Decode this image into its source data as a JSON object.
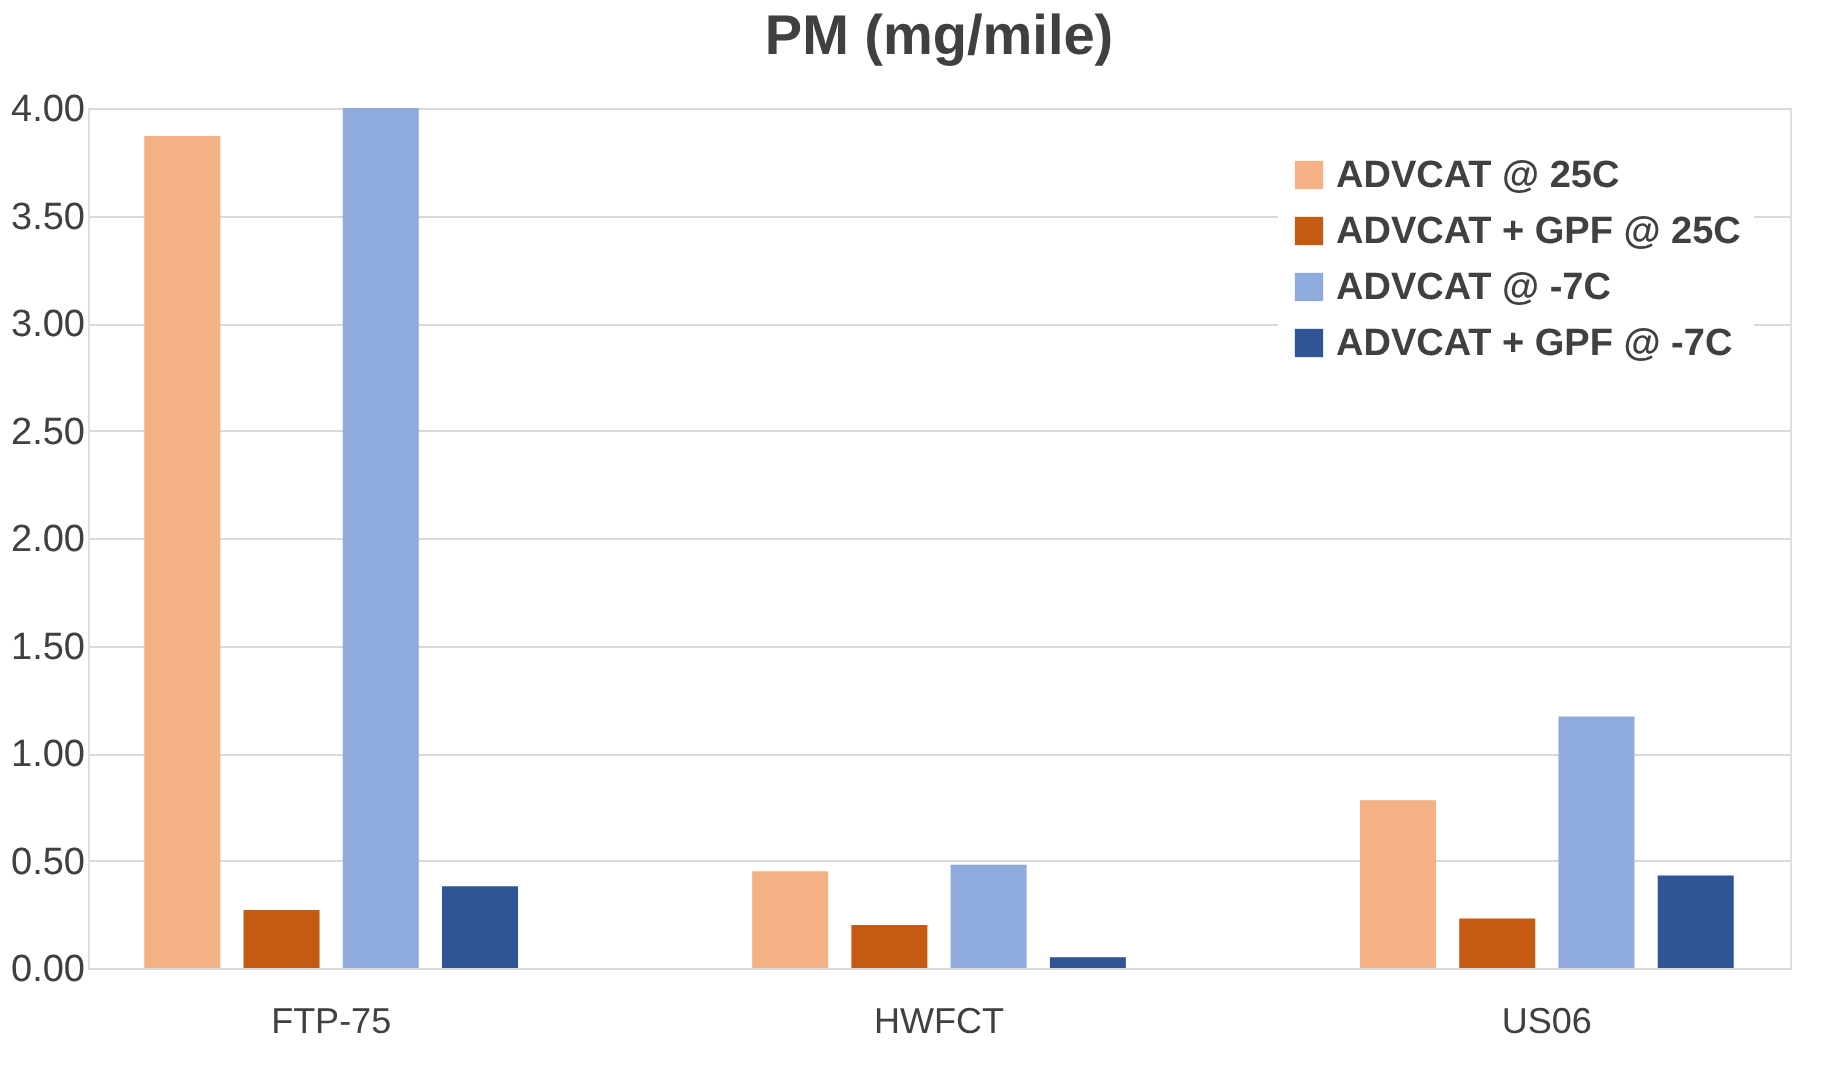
{
  "chart_data": {
    "type": "bar",
    "title": "PM (mg/mile)",
    "categories": [
      "FTP-75",
      "HWFCT",
      "US06"
    ],
    "series": [
      {
        "name": "ADVCAT @ 25C",
        "color": "#f4b183",
        "values": [
          3.87,
          0.45,
          0.78
        ]
      },
      {
        "name": "ADVCAT + GPF @ 25C",
        "color": "#c55a11",
        "values": [
          0.27,
          0.2,
          0.23
        ]
      },
      {
        "name": "ADVCAT @ -7C",
        "color": "#8faadc",
        "values": [
          4.0,
          0.48,
          1.17
        ]
      },
      {
        "name": "ADVCAT + GPF @ -7C",
        "color": "#2f5597",
        "values": [
          0.38,
          0.05,
          0.43
        ]
      }
    ],
    "ylim": [
      0,
      4
    ],
    "yticks": [
      {
        "value": 0,
        "label": "0.00"
      },
      {
        "value": 0.5,
        "label": "0.50"
      },
      {
        "value": 1,
        "label": "1.00"
      },
      {
        "value": 1.5,
        "label": "1.50"
      },
      {
        "value": 2,
        "label": "2.00"
      },
      {
        "value": 2.5,
        "label": "2.50"
      },
      {
        "value": 3,
        "label": "3.00"
      },
      {
        "value": 3.5,
        "label": "3.50"
      },
      {
        "value": 4,
        "label": "4.00"
      }
    ],
    "grid": "y",
    "legend": "top right"
  }
}
